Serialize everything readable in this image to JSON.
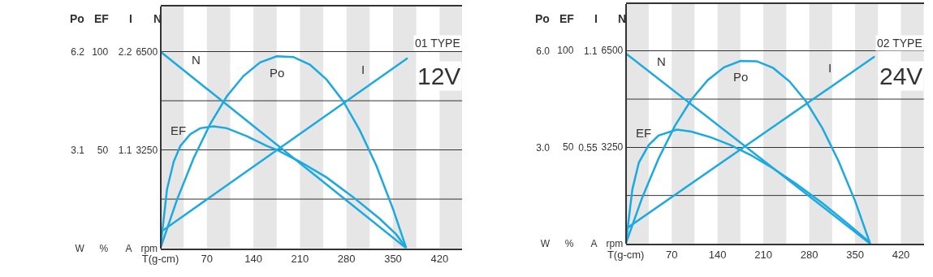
{
  "chart_data": [
    {
      "type": "line",
      "ylabel": "Po",
      "y2label": "EF",
      "y3label": "I",
      "annotations": [
        "01 TYPE",
        "12V"
      ],
      "legend": false,
      "grid": "y",
      "marker": "none",
      "line_style": "solid",
      "xlim": [
        0,
        454
      ],
      "xticks": [
        {
          "value": 0,
          "label": "T(g-cm)"
        },
        70,
        140,
        210,
        280,
        350,
        420
      ],
      "ylim": [
        0,
        7.63
      ],
      "yticks": [
        {
          "value": 0,
          "label": "W"
        },
        3.1,
        6.2
      ],
      "y2lim": [
        0,
        123
      ],
      "y2ticks": [
        {
          "value": 0,
          "label": "%"
        },
        50,
        100
      ],
      "y3lim": [
        0,
        2.71
      ],
      "y3ticks": [
        {
          "value": 0,
          "label": "A"
        },
        1.1,
        2.2
      ],
      "ref_lines": [
        {
          "axis": "y",
          "value": 1.55,
          "color": "#333333"
        },
        {
          "axis": "y",
          "value": 4.65,
          "color": "#333333"
        }
      ],
      "bands": [
        {
          "axis": "x",
          "from": 0,
          "to": 35,
          "color": "#e6e6e6"
        },
        {
          "axis": "x",
          "from": 70,
          "to": 105,
          "color": "#e6e6e6"
        },
        {
          "axis": "x",
          "from": 140,
          "to": 175,
          "color": "#e6e6e6"
        },
        {
          "axis": "x",
          "from": 210,
          "to": 245,
          "color": "#e6e6e6"
        },
        {
          "axis": "x",
          "from": 280,
          "to": 315,
          "color": "#e6e6e6"
        },
        {
          "axis": "x",
          "from": 350,
          "to": 385,
          "color": "#e6e6e6"
        },
        {
          "axis": "x",
          "from": 420,
          "to": 454,
          "color": "#e6e6e6"
        }
      ],
      "series": [
        {
          "name": "Po",
          "color": "#1ba9e1",
          "axis": "y",
          "x": [
            0,
            25,
            50,
            75,
            100,
            125,
            150,
            175,
            200,
            225,
            250,
            275,
            300,
            325,
            350,
            370
          ],
          "values": [
            0,
            1.53,
            2.84,
            3.92,
            4.79,
            5.43,
            5.86,
            6.05,
            6.03,
            5.79,
            5.32,
            4.64,
            3.72,
            2.6,
            1.24,
            0
          ]
        },
        {
          "name": "EF",
          "color": "#1ba9e1",
          "axis": "y2",
          "x": [
            0,
            10,
            20,
            30,
            45,
            60,
            80,
            100,
            130,
            160,
            175,
            210,
            250,
            290,
            330,
            355,
            368
          ],
          "values": [
            0,
            30,
            44,
            52,
            58,
            61,
            62,
            61,
            57,
            52,
            50,
            44,
            36,
            26,
            15,
            7,
            1
          ]
        },
        {
          "name": "I",
          "color": "#1ba9e1",
          "axis": "y3",
          "x": [
            0,
            372
          ],
          "values": [
            0.18,
            2.13
          ]
        }
      ]
    },
    {
      "type": "line",
      "ylabel": "Po",
      "y2label": "EF",
      "y3label": "I",
      "annotations": [
        "02 TYPE",
        "24V"
      ],
      "legend": false,
      "grid": "y",
      "marker": "none",
      "line_style": "solid",
      "xlim": [
        0,
        455
      ],
      "xticks": [
        {
          "value": 0,
          "label": "T(g-cm)"
        },
        70,
        140,
        210,
        280,
        350,
        420
      ],
      "ylim": [
        0,
        7.46
      ],
      "yticks": [
        {
          "value": 0,
          "label": "W"
        },
        {
          "value": 3.0,
          "label": "3.0"
        },
        {
          "value": 6.0,
          "label": "6.0"
        }
      ],
      "y2lim": [
        0,
        124
      ],
      "y2ticks": [
        {
          "value": 0,
          "label": "%"
        },
        50,
        100
      ],
      "y3lim": [
        0,
        1.37
      ],
      "y3ticks": [
        {
          "value": 0,
          "label": "A"
        },
        0.55,
        1.1
      ],
      "ref_lines": [
        {
          "axis": "y",
          "value": 1.5,
          "color": "#333333"
        },
        {
          "axis": "y",
          "value": 4.5,
          "color": "#333333"
        }
      ],
      "bands": [
        {
          "axis": "x",
          "from": 0,
          "to": 35,
          "color": "#e6e6e6"
        },
        {
          "axis": "x",
          "from": 70,
          "to": 105,
          "color": "#e6e6e6"
        },
        {
          "axis": "x",
          "from": 140,
          "to": 175,
          "color": "#e6e6e6"
        },
        {
          "axis": "x",
          "from": 210,
          "to": 245,
          "color": "#e6e6e6"
        },
        {
          "axis": "x",
          "from": 280,
          "to": 315,
          "color": "#e6e6e6"
        },
        {
          "axis": "x",
          "from": 350,
          "to": 385,
          "color": "#e6e6e6"
        },
        {
          "axis": "x",
          "from": 420,
          "to": 455,
          "color": "#e6e6e6"
        }
      ],
      "series": [
        {
          "name": "Po",
          "color": "#1ba9e1",
          "axis": "y",
          "x": [
            0,
            25,
            50,
            75,
            100,
            125,
            150,
            175,
            200,
            225,
            250,
            275,
            300,
            325,
            350,
            373
          ],
          "values": [
            0,
            1.43,
            2.65,
            3.67,
            4.48,
            5.09,
            5.49,
            5.69,
            5.68,
            5.47,
            5.05,
            4.43,
            3.6,
            2.56,
            1.33,
            0
          ]
        },
        {
          "name": "EF",
          "color": "#1ba9e1",
          "axis": "y2",
          "x": [
            0,
            10,
            20,
            35,
            50,
            78,
            100,
            130,
            160,
            190,
            220,
            260,
            300,
            340,
            371
          ],
          "values": [
            0,
            28,
            42,
            51,
            56,
            59,
            58,
            55,
            51,
            46,
            40,
            31,
            21,
            10,
            1
          ]
        },
        {
          "name": "I",
          "color": "#1ba9e1",
          "axis": "y3",
          "x": [
            0,
            380
          ],
          "values": [
            0.084,
            1.07
          ]
        }
      ]
    },
    {
      "type": "line",
      "ylabel": "N",
      "tick_labels": "y",
      "legend": false,
      "marker": "none",
      "line_style": "solid",
      "xlim": [
        0,
        454
      ],
      "ylim": [
        0,
        8000
      ],
      "yticks": [
        {
          "value": 0,
          "label": "rpm"
        },
        3250,
        6500
      ],
      "series": [
        {
          "name": "N",
          "color": "#1ba9e1",
          "x": [
            0,
            370
          ],
          "values": [
            6500,
            0
          ]
        }
      ]
    },
    {
      "type": "line",
      "ylabel": "N",
      "tick_labels": "y",
      "legend": false,
      "marker": "none",
      "line_style": "solid",
      "xlim": [
        0,
        455
      ],
      "ylim": [
        0,
        8060
      ],
      "yticks": [
        {
          "value": 0,
          "label": "rpm"
        },
        3250,
        6500
      ],
      "series": [
        {
          "name": "N",
          "color": "#1ba9e1",
          "x": [
            0,
            373
          ],
          "values": [
            6400,
            0
          ]
        }
      ]
    }
  ]
}
